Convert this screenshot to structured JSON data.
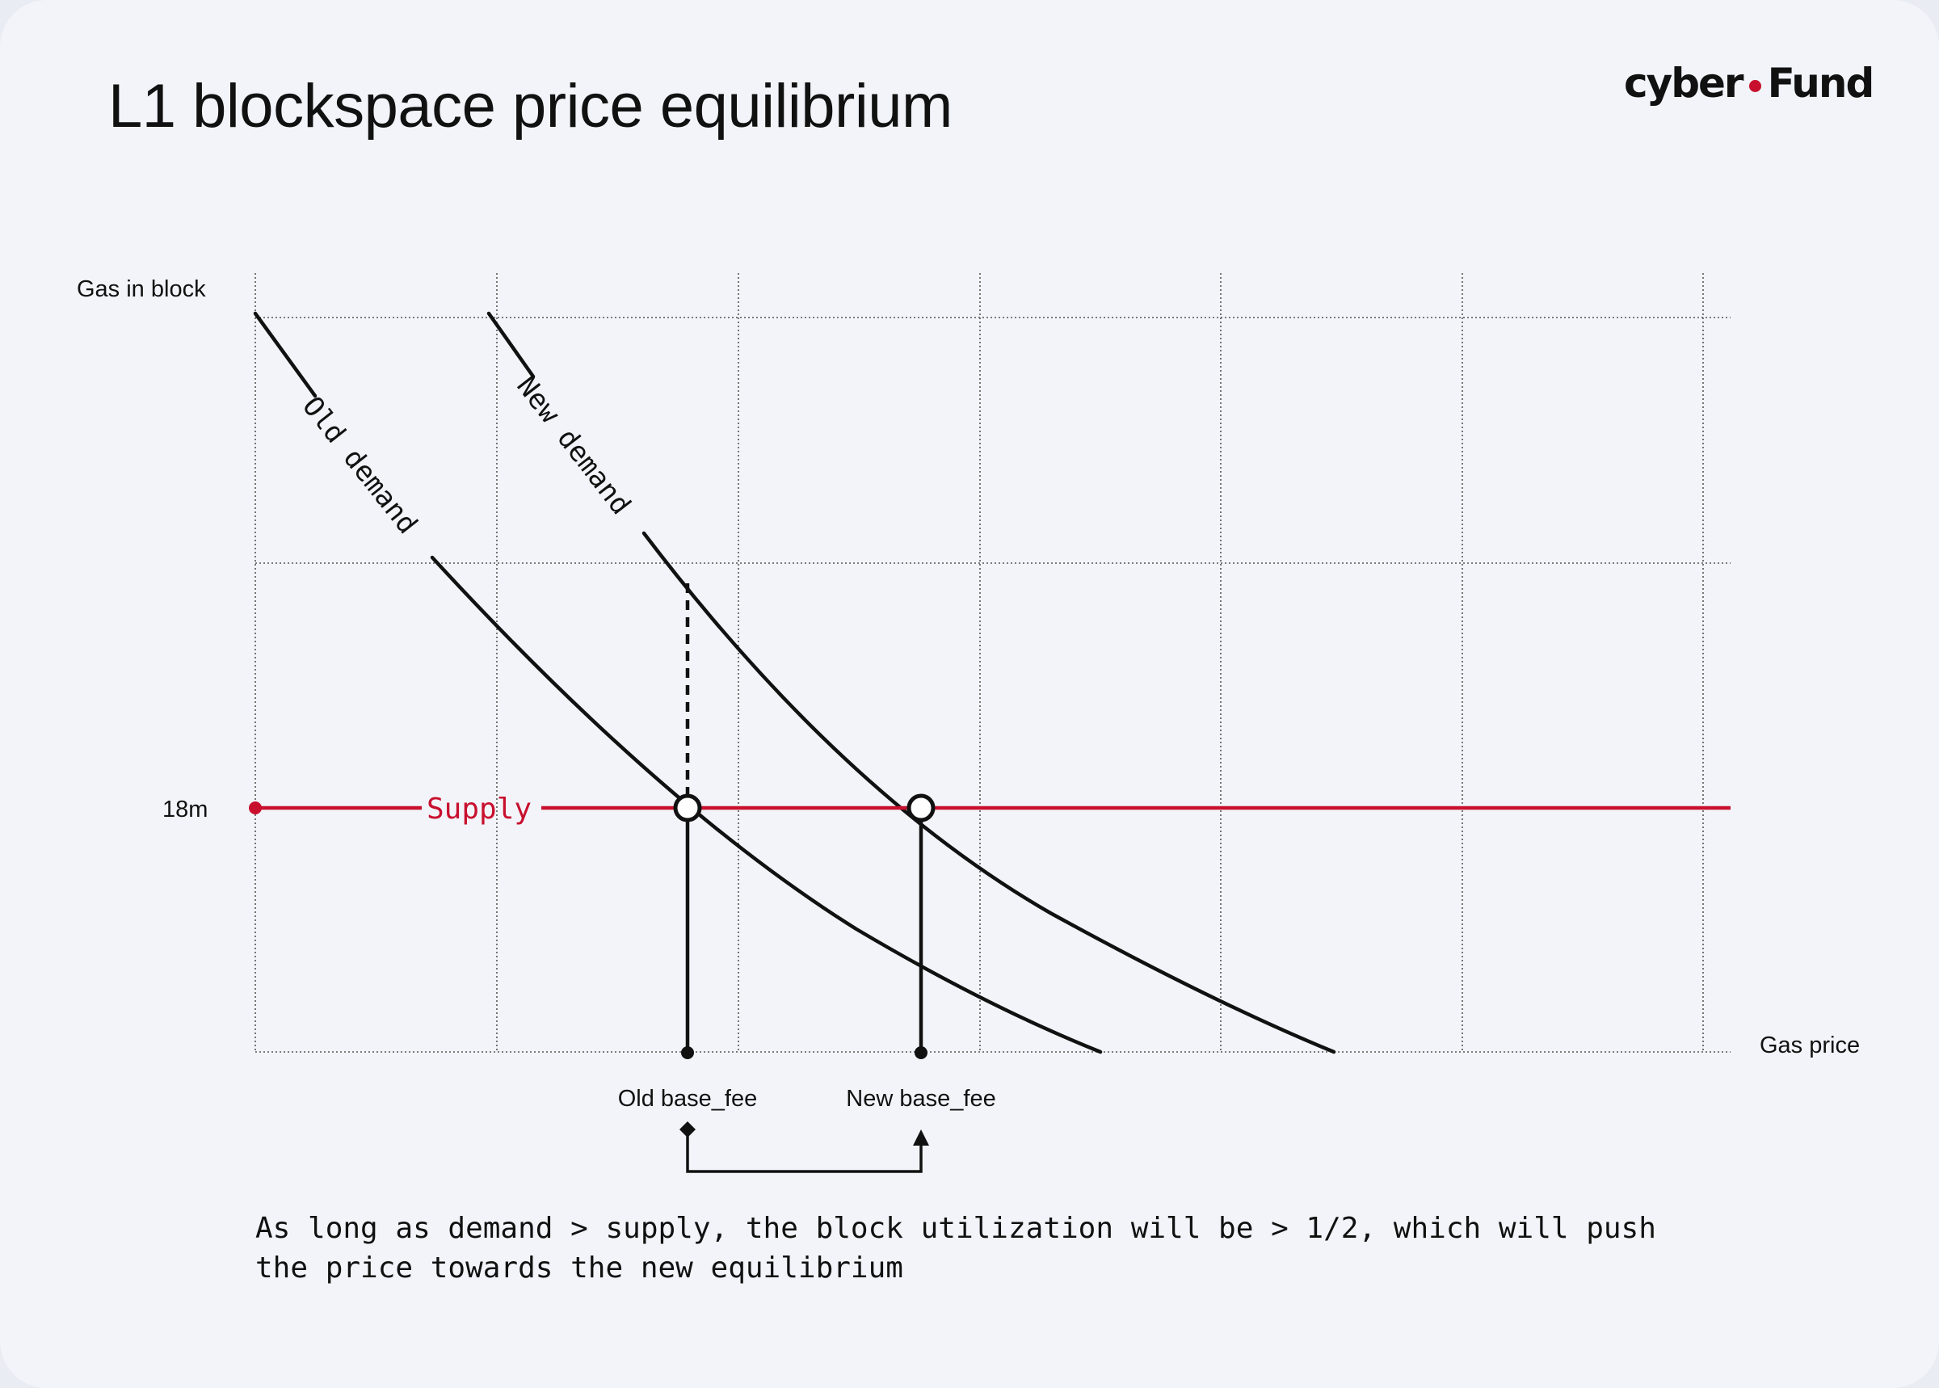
{
  "title": "L1 blockspace price equilibrium",
  "brand": {
    "left": "cyber",
    "right": "Fund",
    "accent": "#c8102e"
  },
  "axes": {
    "y_label": "Gas in block",
    "x_label": "Gas price",
    "y_tick": "18m"
  },
  "curves": {
    "old_demand": "Old demand",
    "new_demand": "New demand",
    "supply": "Supply"
  },
  "markers": {
    "old_base_fee": "Old base_fee",
    "new_base_fee": "New base_fee"
  },
  "caption": "As long as demand > supply, the block utilization will be > 1/2, which will push\nthe price towards the new equilibrium",
  "colors": {
    "supply": "#c8102e",
    "ink": "#111111",
    "grid": "#555555",
    "background": "#f2f4f9"
  }
}
